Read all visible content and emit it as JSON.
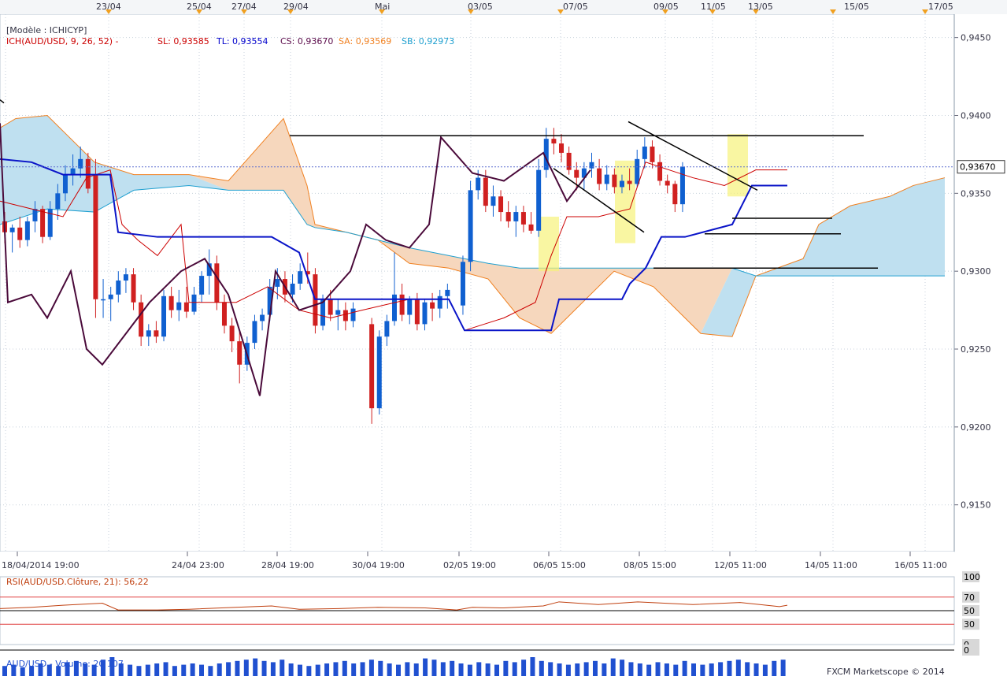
{
  "header": {
    "model_label": "[Modèle : ICHICYP]",
    "legend": [
      {
        "text": "ICH(AUD/USD, 9, 26, 52) -",
        "color": "#cc0000"
      },
      {
        "text": "SL: 0,93585",
        "color": "#cc0000"
      },
      {
        "text": "TL: 0,93554",
        "color": "#0000cc"
      },
      {
        "text": "CS: 0,93670",
        "color": "#5a0a4a"
      },
      {
        "text": "SA: 0,93569",
        "color": "#f08020"
      },
      {
        "text": "SB: 0,92973",
        "color": "#20a0d0"
      }
    ]
  },
  "top_dates": [
    "23/04",
    "25/04",
    "27/04",
    "29/04",
    "Mai",
    "03/05",
    "07/05",
    "09/05",
    "11/05",
    "13/05",
    "15/05",
    "17/05"
  ],
  "bottom_dates": [
    "18/04/2014 19:00",
    "24/04 23:00",
    "28/04 19:00",
    "30/04 19:00",
    "02/05 19:00",
    "06/05 15:00",
    "08/05 15:00",
    "12/05 11:00",
    "14/05 11:00",
    "16/05 11:00"
  ],
  "price_labels": [
    "0,9450",
    "0,9400",
    "0,9350",
    "0,9300",
    "0,9250",
    "0,9200",
    "0,9150"
  ],
  "current_price_label": "0,93670",
  "rsi": {
    "label": "RSI(AUD/USD.Clôture, 21): 56,22",
    "levels": [
      "100",
      "70",
      "50",
      "30",
      "0"
    ]
  },
  "volume": {
    "label": "AUD/USD - Volume: 20 107"
  },
  "footer": {
    "credit": "FXCM Marketscope © 2014"
  },
  "chart_data": {
    "type": "candlestick",
    "symbol": "AUD/USD",
    "indicator": "Ichimoku (9, 26, 52)",
    "ylim": [
      0.912,
      0.9465
    ],
    "current_price": 0.9367,
    "candles": [
      [
        0.9332,
        0.9338,
        0.9318,
        0.9325
      ],
      [
        0.9325,
        0.933,
        0.9312,
        0.9328
      ],
      [
        0.9328,
        0.9335,
        0.9315,
        0.932
      ],
      [
        0.932,
        0.9335,
        0.9316,
        0.9332
      ],
      [
        0.9332,
        0.9345,
        0.9325,
        0.934
      ],
      [
        0.934,
        0.9342,
        0.9318,
        0.9322
      ],
      [
        0.9322,
        0.9345,
        0.932,
        0.934
      ],
      [
        0.934,
        0.9356,
        0.9333,
        0.935
      ],
      [
        0.935,
        0.9368,
        0.9345,
        0.9362
      ],
      [
        0.9362,
        0.9375,
        0.9355,
        0.9366
      ],
      [
        0.9366,
        0.938,
        0.936,
        0.9372
      ],
      [
        0.9372,
        0.9376,
        0.935,
        0.9353
      ],
      [
        0.9362,
        0.9372,
        0.927,
        0.9282
      ],
      [
        0.9282,
        0.9295,
        0.927,
        0.9282
      ],
      [
        0.9282,
        0.929,
        0.9268,
        0.9285
      ],
      [
        0.9285,
        0.93,
        0.928,
        0.9294
      ],
      [
        0.9294,
        0.9302,
        0.9286,
        0.9298
      ],
      [
        0.9298,
        0.9302,
        0.9275,
        0.928
      ],
      [
        0.928,
        0.9285,
        0.9252,
        0.9258
      ],
      [
        0.9258,
        0.9266,
        0.9252,
        0.9262
      ],
      [
        0.9262,
        0.9268,
        0.9254,
        0.9258
      ],
      [
        0.9258,
        0.9288,
        0.9255,
        0.9284
      ],
      [
        0.9284,
        0.929,
        0.927,
        0.9275
      ],
      [
        0.9275,
        0.9288,
        0.9268,
        0.928
      ],
      [
        0.928,
        0.929,
        0.927,
        0.9274
      ],
      [
        0.9274,
        0.929,
        0.9272,
        0.9285
      ],
      [
        0.9285,
        0.93,
        0.928,
        0.9297
      ],
      [
        0.9297,
        0.9314,
        0.9285,
        0.9305
      ],
      [
        0.9305,
        0.931,
        0.9275,
        0.928
      ],
      [
        0.928,
        0.9285,
        0.926,
        0.9265
      ],
      [
        0.9265,
        0.927,
        0.9248,
        0.9255
      ],
      [
        0.9255,
        0.9262,
        0.9228,
        0.924
      ],
      [
        0.924,
        0.9258,
        0.9236,
        0.9254
      ],
      [
        0.9254,
        0.9272,
        0.925,
        0.9268
      ],
      [
        0.9268,
        0.9276,
        0.9262,
        0.9272
      ],
      [
        0.9272,
        0.9295,
        0.9268,
        0.929
      ],
      [
        0.929,
        0.9302,
        0.9282,
        0.9295
      ],
      [
        0.9295,
        0.93,
        0.928,
        0.9285
      ],
      [
        0.9285,
        0.9298,
        0.928,
        0.9292
      ],
      [
        0.9292,
        0.9305,
        0.9288,
        0.93
      ],
      [
        0.93,
        0.9312,
        0.9292,
        0.9298
      ],
      [
        0.9298,
        0.9302,
        0.926,
        0.9265
      ],
      [
        0.9265,
        0.9285,
        0.9262,
        0.9282
      ],
      [
        0.9282,
        0.9288,
        0.9268,
        0.9272
      ],
      [
        0.9272,
        0.9282,
        0.9262,
        0.9275
      ],
      [
        0.9275,
        0.928,
        0.9262,
        0.9268
      ],
      [
        0.9268,
        0.928,
        0.9264,
        0.9276
      ],
      [
        0.9266,
        0.927,
        0.9202,
        0.9212
      ],
      [
        0.9212,
        0.9262,
        0.9208,
        0.9258
      ],
      [
        0.9258,
        0.9272,
        0.9252,
        0.9268
      ],
      [
        0.9268,
        0.9312,
        0.9265,
        0.9285
      ],
      [
        0.9285,
        0.9292,
        0.9268,
        0.9272
      ],
      [
        0.9272,
        0.9284,
        0.9266,
        0.9282
      ],
      [
        0.9282,
        0.9286,
        0.9262,
        0.9266
      ],
      [
        0.9266,
        0.9282,
        0.9262,
        0.928
      ],
      [
        0.928,
        0.9286,
        0.9268,
        0.9276
      ],
      [
        0.9276,
        0.9288,
        0.927,
        0.9284
      ],
      [
        0.9284,
        0.9292,
        0.9276,
        0.9288
      ],
      [
        0.9278,
        0.931,
        0.9272,
        0.9306
      ],
      [
        0.9306,
        0.9358,
        0.93,
        0.9352
      ],
      [
        0.9352,
        0.9365,
        0.9346,
        0.936
      ],
      [
        0.936,
        0.9365,
        0.9338,
        0.9342
      ],
      [
        0.9342,
        0.9355,
        0.9335,
        0.9348
      ],
      [
        0.9348,
        0.9352,
        0.9332,
        0.9338
      ],
      [
        0.9338,
        0.9345,
        0.9328,
        0.9332
      ],
      [
        0.9332,
        0.9342,
        0.9322,
        0.9338
      ],
      [
        0.9338,
        0.9342,
        0.9325,
        0.933
      ],
      [
        0.933,
        0.9338,
        0.9324,
        0.9326
      ],
      [
        0.9326,
        0.9372,
        0.9322,
        0.9365
      ],
      [
        0.9365,
        0.9392,
        0.936,
        0.9385
      ],
      [
        0.9385,
        0.9392,
        0.9375,
        0.9382
      ],
      [
        0.9382,
        0.9388,
        0.937,
        0.9376
      ],
      [
        0.9376,
        0.938,
        0.9362,
        0.9365
      ],
      [
        0.9365,
        0.937,
        0.9352,
        0.936
      ],
      [
        0.936,
        0.937,
        0.9352,
        0.9366
      ],
      [
        0.9366,
        0.9376,
        0.936,
        0.937
      ],
      [
        0.9366,
        0.9372,
        0.9352,
        0.9356
      ],
      [
        0.9356,
        0.9368,
        0.9352,
        0.9362
      ],
      [
        0.9362,
        0.9366,
        0.935,
        0.9354
      ],
      [
        0.9354,
        0.9362,
        0.935,
        0.9358
      ],
      [
        0.9358,
        0.9366,
        0.9352,
        0.9356
      ],
      [
        0.9356,
        0.9378,
        0.9354,
        0.9372
      ],
      [
        0.9372,
        0.9386,
        0.9366,
        0.938
      ],
      [
        0.938,
        0.9384,
        0.9366,
        0.937
      ],
      [
        0.937,
        0.9375,
        0.9355,
        0.9358
      ],
      [
        0.9358,
        0.9362,
        0.935,
        0.9355
      ],
      [
        0.9356,
        0.9358,
        0.9338,
        0.9343
      ],
      [
        0.9343,
        0.937,
        0.9338,
        0.9367
      ]
    ],
    "volume_bars": [
      8,
      9,
      7,
      8,
      10,
      9,
      8,
      11,
      12,
      10,
      9,
      13,
      15,
      10,
      9,
      8,
      9,
      10,
      11,
      8,
      9,
      10,
      9,
      8,
      10,
      11,
      12,
      13,
      14,
      12,
      11,
      13,
      10,
      9,
      8,
      9,
      10,
      11,
      12,
      10,
      11,
      13,
      12,
      10,
      9,
      11,
      10,
      14,
      13,
      11,
      12,
      10,
      9,
      11,
      10,
      9,
      12,
      11,
      13,
      15,
      12,
      11,
      10,
      9,
      10,
      11,
      12,
      10,
      14,
      13,
      11,
      10,
      9,
      11,
      10,
      9,
      12,
      10,
      9,
      10,
      11,
      12,
      13,
      11,
      10,
      9,
      12,
      13
    ],
    "rsi_value": 56.22,
    "rsi_levels": [
      0,
      30,
      50,
      70,
      100
    ]
  }
}
